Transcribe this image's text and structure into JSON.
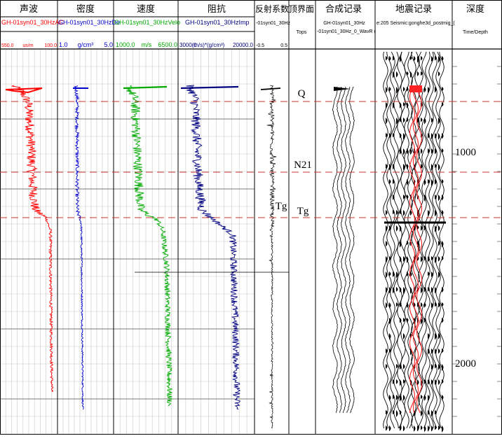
{
  "header": {
    "columns": [
      {
        "title": "声波",
        "curve": "GH-01syn01_30HzAC",
        "scale_min": "550.0",
        "unit": "us/m",
        "scale_max": "100.0",
        "color": "#ff0000"
      },
      {
        "title": "密度",
        "curve": "GH-01syn01_30HzDe",
        "scale_min": "1.0",
        "unit": "g/cm³",
        "scale_max": "5.0",
        "color": "#0000cc"
      },
      {
        "title": "速度",
        "curve": "GH-01syn01_30HzVelo",
        "scale_min": "1000.0",
        "unit": "m/s",
        "scale_max": "6500.0",
        "color": "#00aa00"
      },
      {
        "title": "阻抗",
        "curve": "GH-01syn01_30HzImp",
        "scale_min": "3000.0",
        "unit": "(m/s)*(g/cm³)",
        "scale_max": "20000.0",
        "color": "#000080"
      },
      {
        "title": "反射系数",
        "curve": "-01syn01_30Hz",
        "scale_min": "-0.5",
        "unit": "",
        "scale_max": "0.5",
        "color": "#000000"
      },
      {
        "title": "顶界面",
        "curve": "Tops",
        "scale_min": "",
        "unit": "",
        "scale_max": "",
        "color": "#000000"
      },
      {
        "title": "合成记录",
        "curve": "GH-01syn01_30Hz",
        "subcurve": "-01syn01_30Hz_0_WavR (",
        "scale_min": "",
        "unit": "",
        "scale_max": "",
        "color": "#000000"
      },
      {
        "title": "地震记录",
        "curve": "e:205 Seismic:gonghe3d_postmig_(",
        "scale_min": "",
        "unit": "",
        "scale_max": "",
        "color": "#000000"
      },
      {
        "title": "深度",
        "curve": "Time/Depth",
        "scale_min": "",
        "unit": "",
        "scale_max": "",
        "color": "#000000"
      }
    ]
  },
  "tops": [
    {
      "label": "Q"
    },
    {
      "label": "N21"
    },
    {
      "label": "Tg"
    }
  ],
  "reflection_label": "Tg",
  "depth_labels": [
    "1000",
    "2000"
  ],
  "colors": {
    "marker_line": "#cc3333",
    "grid": "#c8c8c8",
    "border": "#000000"
  }
}
